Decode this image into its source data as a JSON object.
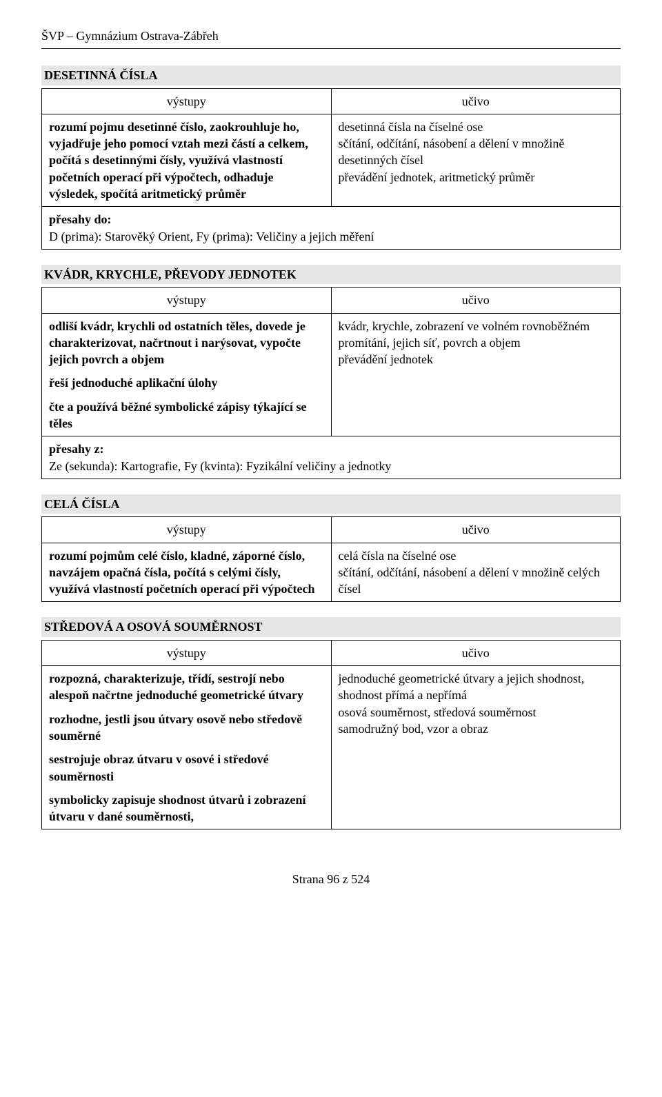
{
  "header": {
    "text": "ŠVP – Gymnázium Ostrava-Zábřeh"
  },
  "labels": {
    "vystupy": "výstupy",
    "ucivo": "učivo",
    "presahy_do": "přesahy do:",
    "presahy_z": "přesahy z:"
  },
  "sections": [
    {
      "heading": "DESETINNÁ ČÍSLA",
      "vystupy": [
        "rozumí pojmu desetinné číslo, zaokrouhluje ho, vyjadřuje jeho pomocí vztah mezi částí a celkem, počítá s desetinnými čísly, využívá vlastností početních operací při výpočtech, odhaduje výsledek, spočítá aritmetický průměr"
      ],
      "ucivo": [
        "desetinná čísla na číselné ose",
        "sčítání, odčítání, násobení a dělení v množině desetinných čísel",
        "převádění jednotek, aritmetický průměr"
      ],
      "presahy": {
        "label_key": "presahy_do",
        "text": "D (prima): Starověký Orient, Fy (prima): Veličiny a jejich měření"
      }
    },
    {
      "heading": "KVÁDR, KRYCHLE, PŘEVODY JEDNOTEK",
      "vystupy": [
        "odliší kvádr, krychli od ostatních těles, dovede je charakterizovat, načrtnout i narýsovat, vypočte jejich povrch a objem",
        "řeší jednoduché aplikační úlohy",
        "čte a používá běžné symbolické zápisy týkající se těles"
      ],
      "ucivo": [
        "kvádr, krychle, zobrazení ve volném rovnoběžném promítání, jejich síť, povrch a objem",
        "převádění jednotek"
      ],
      "presahy": {
        "label_key": "presahy_z",
        "text": "Ze (sekunda): Kartografie, Fy (kvinta): Fyzikální veličiny a jednotky"
      }
    },
    {
      "heading": "CELÁ ČÍSLA",
      "vystupy": [
        "rozumí pojmům celé číslo, kladné, záporné číslo, navzájem opačná čísla, počítá s celými čísly, využívá vlastností početních operací při výpočtech"
      ],
      "ucivo": [
        "celá čísla na číselné ose",
        "sčítání, odčítání, násobení a dělení v množině celých čísel"
      ],
      "presahy": null
    },
    {
      "heading": "STŘEDOVÁ A OSOVÁ SOUMĚRNOST",
      "vystupy": [
        "rozpozná, charakterizuje, třídí, sestrojí nebo alespoň načrtne jednoduché geometrické útvary",
        "rozhodne, jestli jsou útvary osově nebo středově souměrné",
        "sestrojuje obraz útvaru v osové i středové souměrnosti",
        "symbolicky zapisuje shodnost útvarů i zobrazení útvaru v dané souměrnosti,"
      ],
      "ucivo": [
        "jednoduché geometrické útvary a jejich shodnost, shodnost přímá a nepřímá",
        "osová souměrnost, středová souměrnost",
        "samodružný bod, vzor a obraz"
      ],
      "presahy": null
    }
  ],
  "footer": {
    "text": "Strana 96 z 524"
  }
}
